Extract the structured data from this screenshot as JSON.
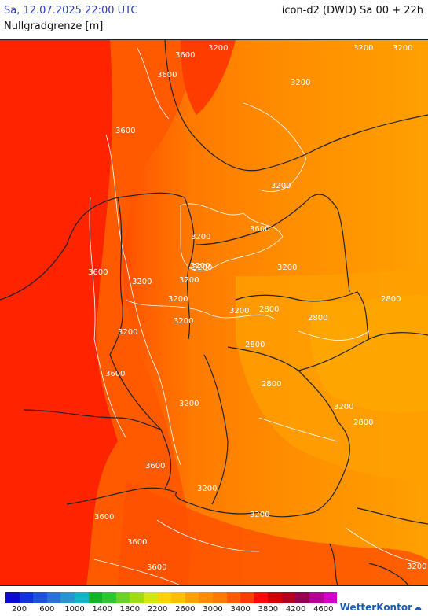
{
  "header": {
    "datetime": "Sa, 12.07.2025 22:00 UTC",
    "model": "icon-d2 (DWD) Sa 00 + 22h",
    "parameter": "Nullgradgrenze [m]"
  },
  "map": {
    "contour_labels": [
      "3600",
      "3600",
      "3200",
      "3200",
      "3600",
      "3200",
      "3200",
      "3200",
      "3600",
      "3200",
      "3200",
      "3200",
      "3600",
      "3200",
      "3200",
      "3200",
      "3200",
      "2800",
      "2800",
      "2800",
      "2800",
      "3200",
      "3600",
      "3200",
      "2800",
      "3200",
      "2800",
      "3200",
      "3600",
      "3200",
      "3600",
      "3600",
      "3600",
      "3200",
      "3200",
      "3200"
    ]
  },
  "legend": {
    "colors": [
      "#0a0ad0",
      "#1432dc",
      "#1e50dc",
      "#2872d8",
      "#2894d2",
      "#14b4c8",
      "#14b428",
      "#2cc832",
      "#6cd228",
      "#a0dc14",
      "#d2e614",
      "#ffd200",
      "#ffbe00",
      "#ffa000",
      "#ff8c00",
      "#ff7800",
      "#ff5a00",
      "#ff3c00",
      "#ff0a0a",
      "#d20000",
      "#b4001e",
      "#960050",
      "#b40096",
      "#d200c8"
    ],
    "tick_labels": [
      "200",
      "600",
      "1000",
      "1400",
      "1800",
      "2200",
      "2600",
      "3000",
      "3400",
      "3800",
      "4200",
      "4600"
    ]
  },
  "logo": {
    "text": "WetterKontor",
    "icon": "cloud-icon"
  }
}
